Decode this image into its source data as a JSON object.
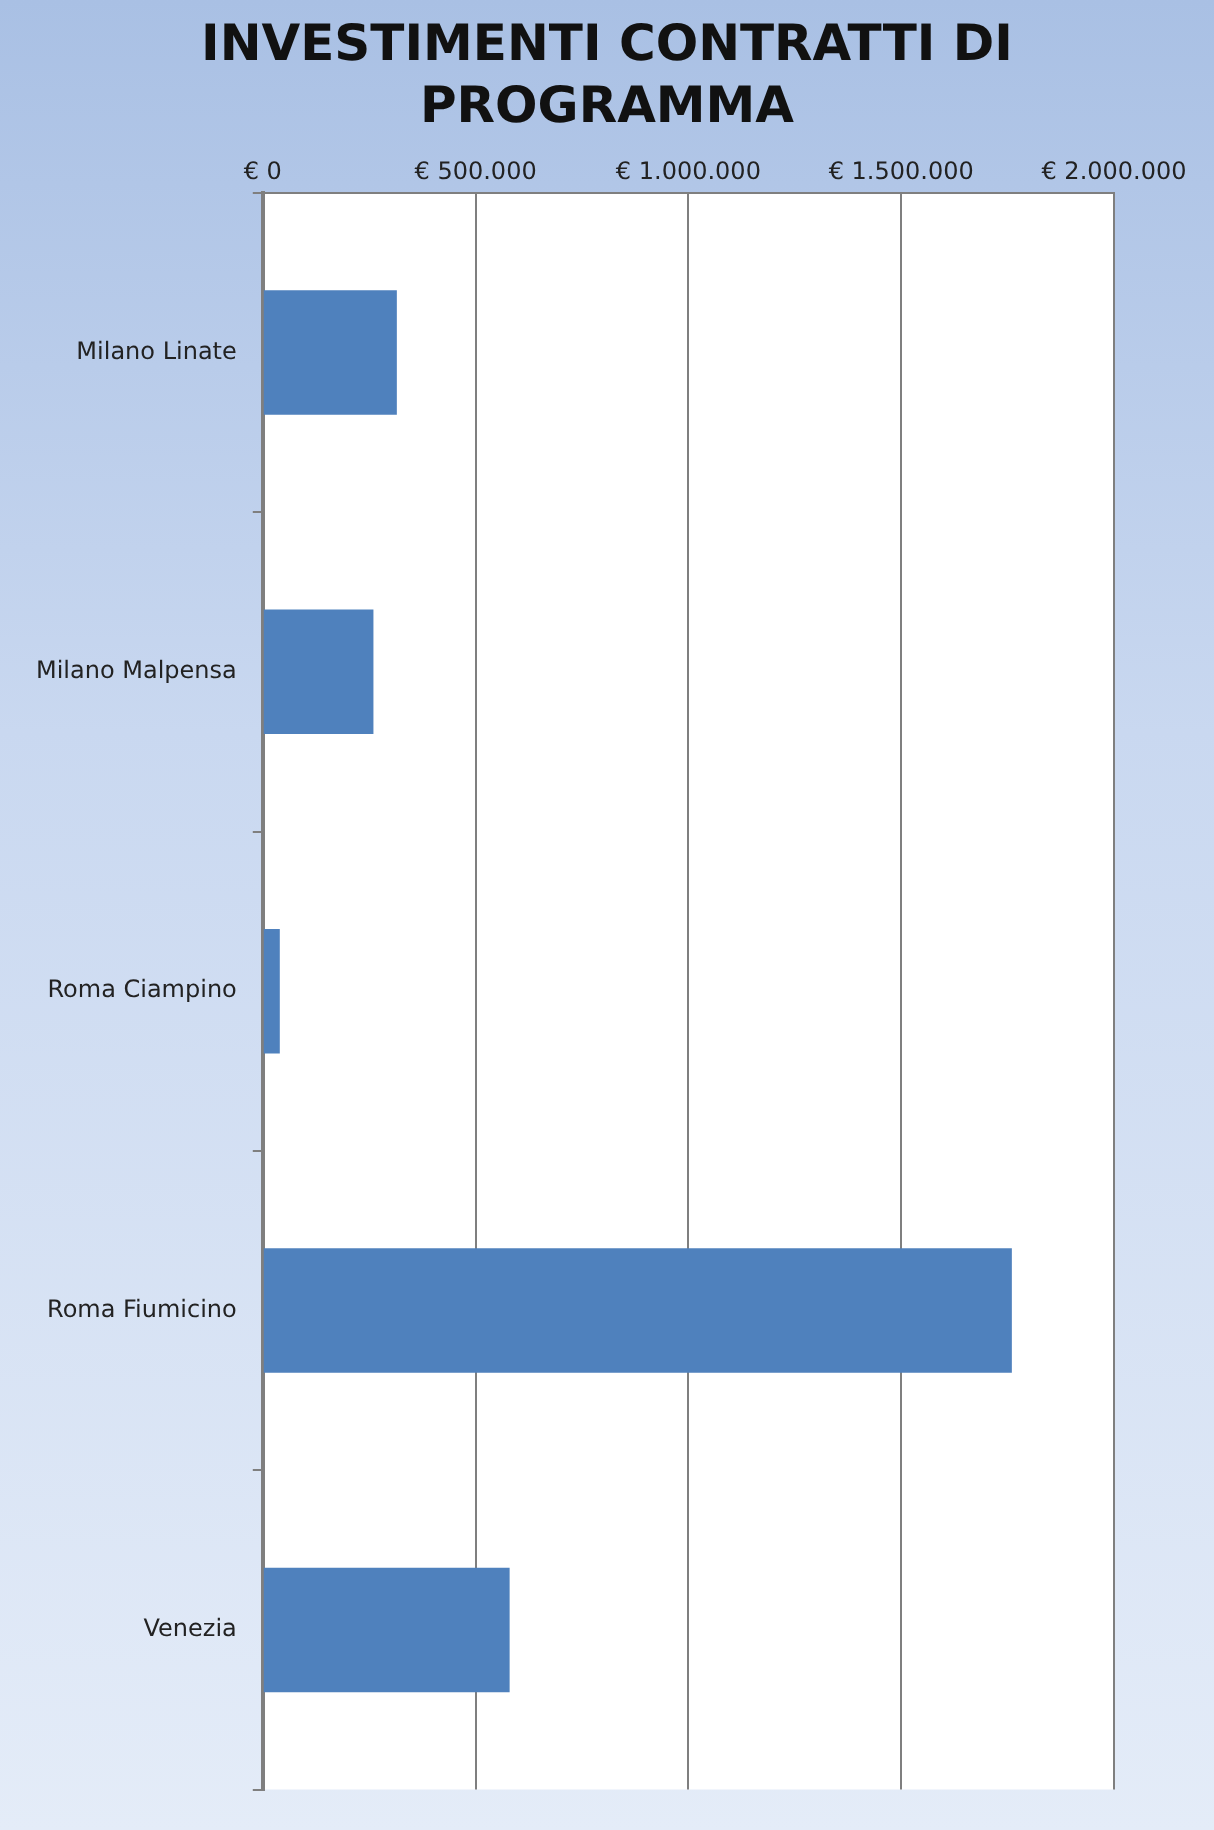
{
  "chart_data": {
    "type": "bar",
    "orientation": "horizontal",
    "title": "INVESTIMENTI CONTRATTI DI PROGRAMMA",
    "categories": [
      "Milano Linate",
      "Milano Malpensa",
      "Roma Ciampino",
      "Roma Fiumicino",
      "Venezia"
    ],
    "values": [
      315000,
      260000,
      40000,
      1760000,
      580000
    ],
    "color": "#4f81bd",
    "xlim": [
      0,
      2000000
    ],
    "xticks": [
      {
        "value": 0,
        "label": "€ 0"
      },
      {
        "value": 500000,
        "label": "€ 500.000"
      },
      {
        "value": 1000000,
        "label": "€ 1.000.000"
      },
      {
        "value": 1500000,
        "label": "€ 1.500.000"
      },
      {
        "value": 2000000,
        "label": "€ 2.000.000"
      }
    ],
    "grid": "x",
    "legend": false
  }
}
